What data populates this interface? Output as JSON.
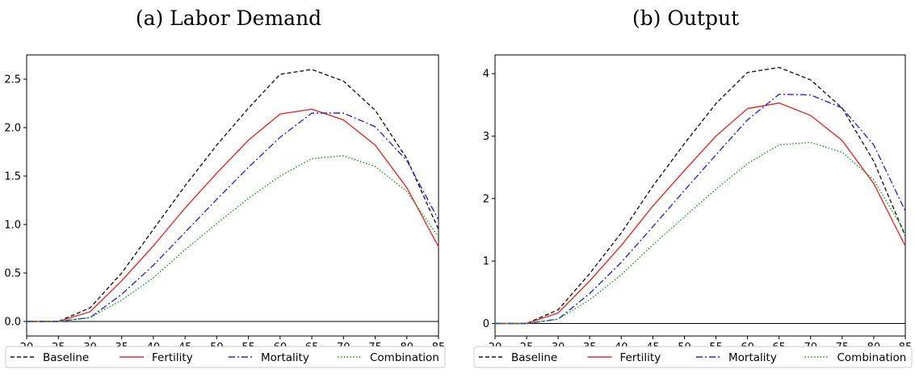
{
  "colors": {
    "baseline": "#1a1a1a",
    "fertility": "#e03030",
    "mortality": "#2b2bd6",
    "combination": "#2a9a2a"
  },
  "chart_data": [
    {
      "type": "line",
      "title": "(a) Labor Demand",
      "xlabel": "",
      "ylabel": "",
      "x": [
        20,
        25,
        30,
        35,
        40,
        45,
        50,
        55,
        60,
        65,
        70,
        75,
        80,
        85
      ],
      "xlim": [
        20,
        85
      ],
      "ylim": [
        -0.15,
        2.75
      ],
      "xticks": [
        20,
        25,
        30,
        35,
        40,
        45,
        50,
        55,
        60,
        65,
        70,
        75,
        80,
        85
      ],
      "yticks": [
        0.0,
        0.5,
        1.0,
        1.5,
        2.0,
        2.5
      ],
      "ytick_labels": [
        "0.0",
        "0.5",
        "1.0",
        "1.5",
        "2.0",
        "2.5"
      ],
      "zero_line": true,
      "grid": false,
      "legend_position": "bottom-outside",
      "series": [
        {
          "name": "Baseline",
          "style": "dashed",
          "values": [
            0,
            0,
            0.14,
            0.5,
            0.95,
            1.4,
            1.82,
            2.2,
            2.55,
            2.6,
            2.48,
            2.18,
            1.68,
            0.95
          ]
        },
        {
          "name": "Fertility",
          "style": "solid",
          "values": [
            0,
            0,
            0.1,
            0.42,
            0.78,
            1.17,
            1.53,
            1.87,
            2.14,
            2.19,
            2.08,
            1.82,
            1.38,
            0.77
          ]
        },
        {
          "name": "Mortality",
          "style": "dashdot",
          "values": [
            0,
            0,
            0.04,
            0.28,
            0.58,
            0.92,
            1.26,
            1.59,
            1.9,
            2.15,
            2.15,
            2.01,
            1.66,
            1.05
          ]
        },
        {
          "name": "Combination",
          "style": "dotted",
          "values": [
            0,
            0,
            0.04,
            0.22,
            0.45,
            0.74,
            1.01,
            1.27,
            1.5,
            1.68,
            1.71,
            1.6,
            1.34,
            0.87
          ]
        }
      ]
    },
    {
      "type": "line",
      "title": "(b) Output",
      "xlabel": "",
      "ylabel": "",
      "x": [
        20,
        25,
        30,
        35,
        40,
        45,
        50,
        55,
        60,
        65,
        70,
        75,
        80,
        85
      ],
      "xlim": [
        20,
        85
      ],
      "ylim": [
        -0.2,
        4.3
      ],
      "xticks": [
        20,
        25,
        30,
        35,
        40,
        45,
        50,
        55,
        60,
        65,
        70,
        75,
        80,
        85
      ],
      "yticks": [
        0,
        1,
        2,
        3,
        4
      ],
      "ytick_labels": [
        "0",
        "1",
        "2",
        "3",
        "4"
      ],
      "zero_line": true,
      "grid": false,
      "legend_position": "bottom-outside",
      "series": [
        {
          "name": "Baseline",
          "style": "dashed",
          "values": [
            0,
            0,
            0.22,
            0.8,
            1.45,
            2.2,
            2.88,
            3.52,
            4.02,
            4.1,
            3.9,
            3.45,
            2.6,
            1.4
          ]
        },
        {
          "name": "Fertility",
          "style": "solid",
          "values": [
            0,
            0,
            0.17,
            0.68,
            1.25,
            1.88,
            2.45,
            3.0,
            3.44,
            3.53,
            3.33,
            2.93,
            2.24,
            1.24
          ]
        },
        {
          "name": "Mortality",
          "style": "dashdot",
          "values": [
            0,
            0,
            0.07,
            0.48,
            0.98,
            1.55,
            2.13,
            2.7,
            3.26,
            3.67,
            3.66,
            3.45,
            2.86,
            1.8
          ]
        },
        {
          "name": "Combination",
          "style": "dotted",
          "values": [
            0,
            0,
            0.07,
            0.38,
            0.78,
            1.26,
            1.71,
            2.15,
            2.56,
            2.86,
            2.9,
            2.74,
            2.3,
            1.45
          ]
        }
      ]
    }
  ]
}
